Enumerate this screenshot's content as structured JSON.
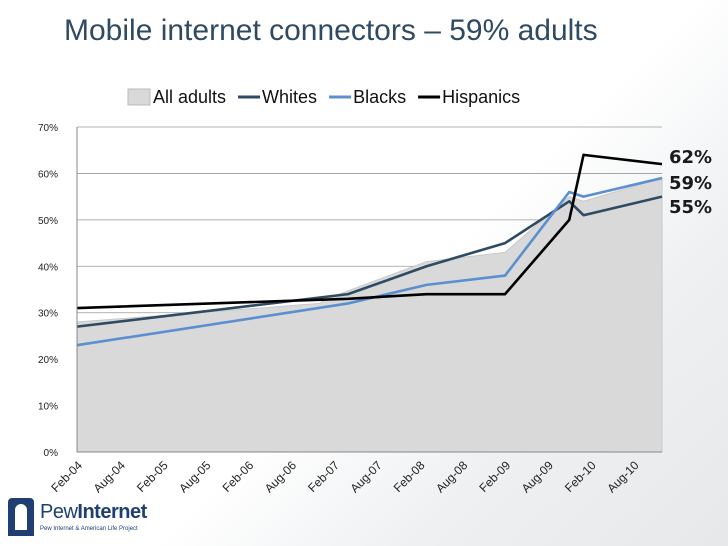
{
  "title": "Mobile internet connectors – 59% adults",
  "logo": {
    "name_light": "Pew",
    "name_bold": "Internet",
    "tagline": "Pew Internet & American Life Project"
  },
  "chart_data": {
    "type": "line",
    "title": "Mobile internet connectors – 59% adults",
    "xlabel": "",
    "ylabel": "",
    "x_tick_labels": [
      "Feb-04",
      "Aug-04",
      "Feb-05",
      "Aug-05",
      "Feb-06",
      "Aug-06",
      "Feb-07",
      "Aug-07",
      "Feb-08",
      "Aug-08",
      "Feb-09",
      "Aug-09",
      "Feb-10",
      "Aug-10"
    ],
    "y_tick_labels": [
      "0%",
      "10%",
      "20%",
      "30%",
      "40%",
      "50%",
      "60%",
      "70%"
    ],
    "ylim": [
      0,
      70
    ],
    "grid": true,
    "legend_position": "top",
    "series": [
      {
        "name": "All adults",
        "style": "area",
        "color": "#d9d9d9",
        "points": [
          [
            "Feb-04",
            28
          ],
          [
            "Dec-06",
            32
          ],
          [
            "Jan-07",
            33
          ],
          [
            "Mar-08",
            41
          ],
          [
            "Feb-09",
            43
          ],
          [
            "Nov-09",
            55
          ],
          [
            "Jan-10",
            54
          ],
          [
            "Dec-10",
            59
          ]
        ]
      },
      {
        "name": "Whites",
        "style": "line",
        "color": "#2f4a63",
        "points": [
          [
            "Feb-04",
            27
          ],
          [
            "Apr-07",
            34
          ],
          [
            "Mar-08",
            40
          ],
          [
            "Feb-09",
            45
          ],
          [
            "Nov-09",
            54
          ],
          [
            "Jan-10",
            51
          ],
          [
            "Dec-10",
            55
          ]
        ]
      },
      {
        "name": "Blacks",
        "style": "line",
        "color": "#5b8fd0",
        "points": [
          [
            "Feb-04",
            23
          ],
          [
            "Apr-07",
            32
          ],
          [
            "Mar-08",
            36
          ],
          [
            "Feb-09",
            38
          ],
          [
            "Nov-09",
            56
          ],
          [
            "Jan-10",
            55
          ],
          [
            "Dec-10",
            59
          ]
        ]
      },
      {
        "name": "Hispanics",
        "style": "line",
        "color": "#000000",
        "points": [
          [
            "Feb-04",
            31
          ],
          [
            "Apr-07",
            33
          ],
          [
            "Mar-08",
            34
          ],
          [
            "Feb-09",
            34
          ],
          [
            "Nov-09",
            50
          ],
          [
            "Jan-10",
            64
          ],
          [
            "Dec-10",
            62
          ]
        ]
      }
    ],
    "end_labels": [
      "62%",
      "59%",
      "55%"
    ]
  }
}
